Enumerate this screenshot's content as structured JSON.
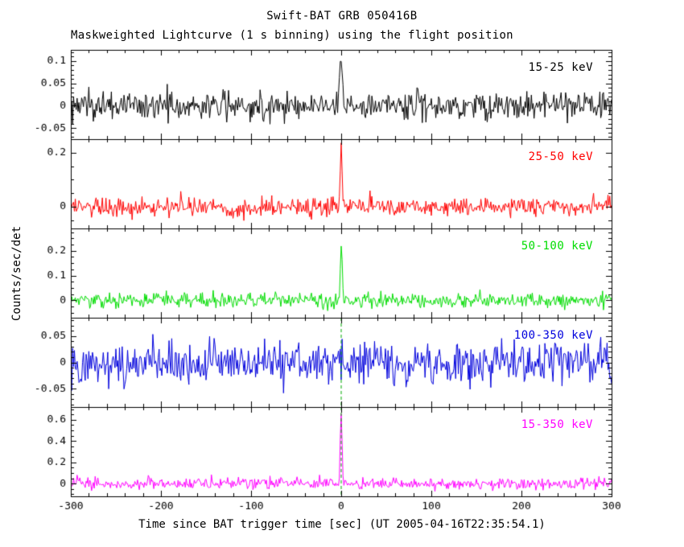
{
  "chart_data": {
    "type": "line",
    "title": "Swift-BAT GRB 050416B",
    "subtitle": "Maskweighted Lightcurve (1 s binning) using the flight position",
    "xlabel": "Time since BAT trigger time [sec] (UT 2005-04-16T22:35:54.1)",
    "ylabel": "Counts/sec/det",
    "xlim": [
      -300,
      300
    ],
    "xticks": [
      -300,
      -200,
      -100,
      0,
      100,
      200,
      300
    ],
    "x_minor_step": 20,
    "bin_seconds": 1,
    "background": "#ffffff",
    "frame_color": "#000000",
    "grid": false,
    "legend_position": "inside-top-right-per-panel",
    "trigger_line": {
      "t": 0,
      "style": "dashed",
      "color": "#00aa00"
    },
    "panels": [
      {
        "label": "15-25 keV",
        "color": "#000000",
        "ylim": [
          -0.075,
          0.125
        ],
        "yticks": [
          -0.05,
          0,
          0.05,
          0.1
        ],
        "y_minor_step": 0.01,
        "noise_sigma": 0.016,
        "peaks": [
          {
            "t": 0,
            "height": 0.115,
            "width_sec": 1.5
          },
          {
            "t": 85,
            "height": 0.05,
            "width_sec": 1.0
          }
        ],
        "trigger_line": false
      },
      {
        "label": "25-50 keV",
        "color": "#ff0000",
        "ylim": [
          -0.08,
          0.25
        ],
        "yticks": [
          0,
          0.2
        ],
        "y_minor_step": 0.05,
        "noise_sigma": 0.018,
        "peaks": [
          {
            "t": 0,
            "height": 0.215,
            "width_sec": 1.0
          }
        ],
        "trigger_line": false
      },
      {
        "label": "50-100 keV",
        "color": "#00dd00",
        "ylim": [
          -0.07,
          0.29
        ],
        "yticks": [
          0,
          0.1,
          0.2
        ],
        "y_minor_step": 0.025,
        "noise_sigma": 0.015,
        "peaks": [
          {
            "t": 0,
            "height": 0.27,
            "width_sec": 0.9
          }
        ],
        "trigger_line": false
      },
      {
        "label": "100-350 keV",
        "color": "#0000dd",
        "ylim": [
          -0.085,
          0.085
        ],
        "yticks": [
          -0.05,
          0,
          0.05
        ],
        "y_minor_step": 0.01,
        "noise_sigma": 0.02,
        "peaks": [],
        "trigger_line": true
      },
      {
        "label": "15-350 keV",
        "color": "#ff00ff",
        "ylim": [
          -0.12,
          0.72
        ],
        "yticks": [
          0,
          0.2,
          0.4,
          0.6
        ],
        "y_minor_step": 0.05,
        "noise_sigma": 0.028,
        "peaks": [
          {
            "t": 0,
            "height": 0.65,
            "width_sec": 1.0
          }
        ],
        "trigger_line": true
      }
    ]
  }
}
